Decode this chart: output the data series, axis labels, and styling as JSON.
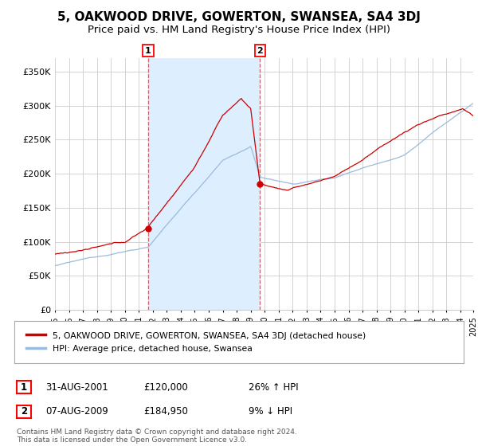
{
  "title": "5, OAKWOOD DRIVE, GOWERTON, SWANSEA, SA4 3DJ",
  "subtitle": "Price paid vs. HM Land Registry's House Price Index (HPI)",
  "ylim": [
    0,
    370000
  ],
  "yticks": [
    0,
    50000,
    100000,
    150000,
    200000,
    250000,
    300000,
    350000
  ],
  "ytick_labels": [
    "£0",
    "£50K",
    "£100K",
    "£150K",
    "£200K",
    "£250K",
    "£300K",
    "£350K"
  ],
  "line1_color": "#cc0000",
  "line2_color": "#99bbdd",
  "sale1_month_idx": 80,
  "sale1_price": 120000,
  "sale1_date_str": "31-AUG-2001",
  "sale1_pct": "26% ↑ HPI",
  "sale2_month_idx": 176,
  "sale2_price": 184950,
  "sale2_date_str": "07-AUG-2009",
  "sale2_pct": "9% ↓ HPI",
  "legend_line1": "5, OAKWOOD DRIVE, GOWERTON, SWANSEA, SA4 3DJ (detached house)",
  "legend_line2": "HPI: Average price, detached house, Swansea",
  "footer": "Contains HM Land Registry data © Crown copyright and database right 2024.\nThis data is licensed under the Open Government Licence v3.0.",
  "background_color": "#ffffff",
  "grid_color": "#cccccc",
  "shade_color": "#ddeeff",
  "title_fontsize": 11,
  "subtitle_fontsize": 9.5
}
